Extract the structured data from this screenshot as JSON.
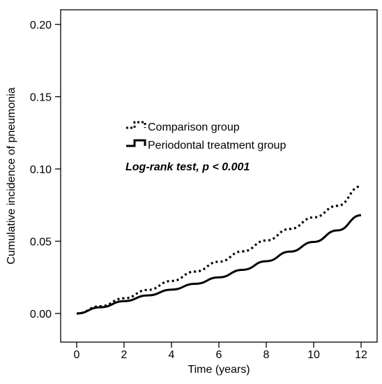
{
  "chart_data": {
    "type": "line",
    "title": "",
    "xlabel": "Time (years)",
    "ylabel": "Cumulative incidence of pneumonia",
    "xlim": [
      0,
      12
    ],
    "ylim": [
      0,
      0.2
    ],
    "x_ticks": [
      0,
      2,
      4,
      6,
      8,
      10,
      12
    ],
    "x_tick_labels": [
      "0",
      "2",
      "4",
      "6",
      "8",
      "10",
      "12"
    ],
    "y_ticks": [
      0,
      0.05,
      0.1,
      0.15,
      0.2
    ],
    "y_tick_labels": [
      "0.00",
      "0.05",
      "0.10",
      "0.15",
      "0.20"
    ],
    "grid": false,
    "legend_position": "middle-left",
    "annotation": "Log-rank test, p < 0.001",
    "series": [
      {
        "name": "Comparison group",
        "style": "dotted",
        "color": "#000000",
        "x": [
          0,
          1,
          2,
          3,
          4,
          5,
          6,
          7,
          8,
          9,
          10,
          11,
          12
        ],
        "y": [
          0,
          0.005,
          0.0105,
          0.0163,
          0.0225,
          0.029,
          0.0358,
          0.043,
          0.0505,
          0.0585,
          0.0665,
          0.0745,
          0.088
        ]
      },
      {
        "name": "Periodontal treatment group",
        "style": "solid",
        "color": "#000000",
        "x": [
          0,
          1,
          2,
          3,
          4,
          5,
          6,
          7,
          8,
          9,
          10,
          11,
          12
        ],
        "y": [
          0,
          0.0043,
          0.0085,
          0.0125,
          0.0165,
          0.0205,
          0.025,
          0.0302,
          0.0362,
          0.0428,
          0.0495,
          0.0575,
          0.068
        ]
      }
    ]
  }
}
